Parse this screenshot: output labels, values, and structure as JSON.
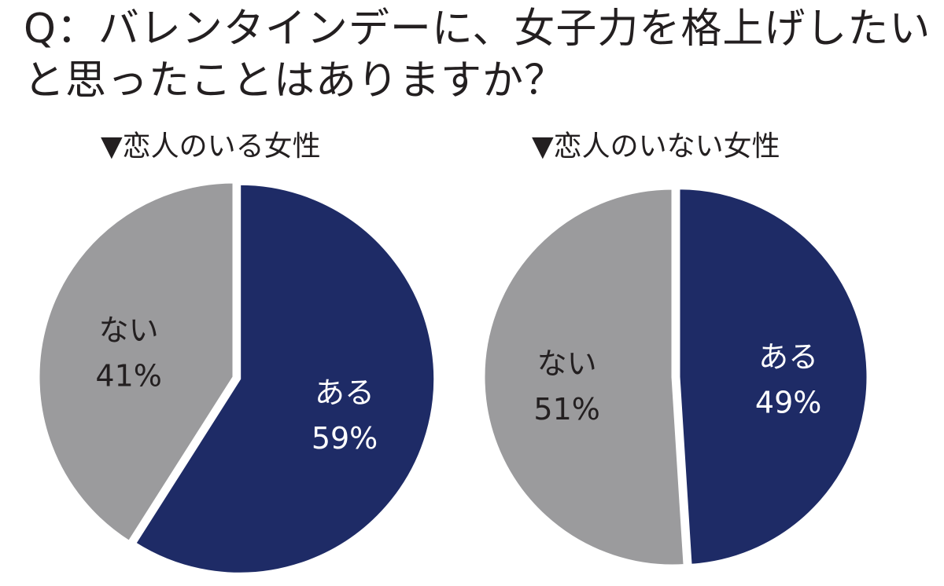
{
  "title": {
    "line1": "Q：バレンタインデーに、女子力を格上げしたい",
    "line2": "と思ったことはありますか？"
  },
  "colors": {
    "yes": "#1e2b66",
    "no": "#9b9b9d",
    "yes_text": "#ffffff",
    "no_text": "#231f20"
  },
  "chart_data": [
    {
      "type": "pie",
      "title": "▼恋人のいる女性",
      "slices": [
        {
          "label": "ある",
          "value": 59,
          "value_label": "59%",
          "exploded": true
        },
        {
          "label": "ない",
          "value": 41,
          "value_label": "41%",
          "exploded": false
        }
      ]
    },
    {
      "type": "pie",
      "title": "▼恋人のいない女性",
      "slices": [
        {
          "label": "ある",
          "value": 49,
          "value_label": "49%",
          "exploded": true
        },
        {
          "label": "ない",
          "value": 51,
          "value_label": "51%",
          "exploded": false
        }
      ]
    }
  ]
}
